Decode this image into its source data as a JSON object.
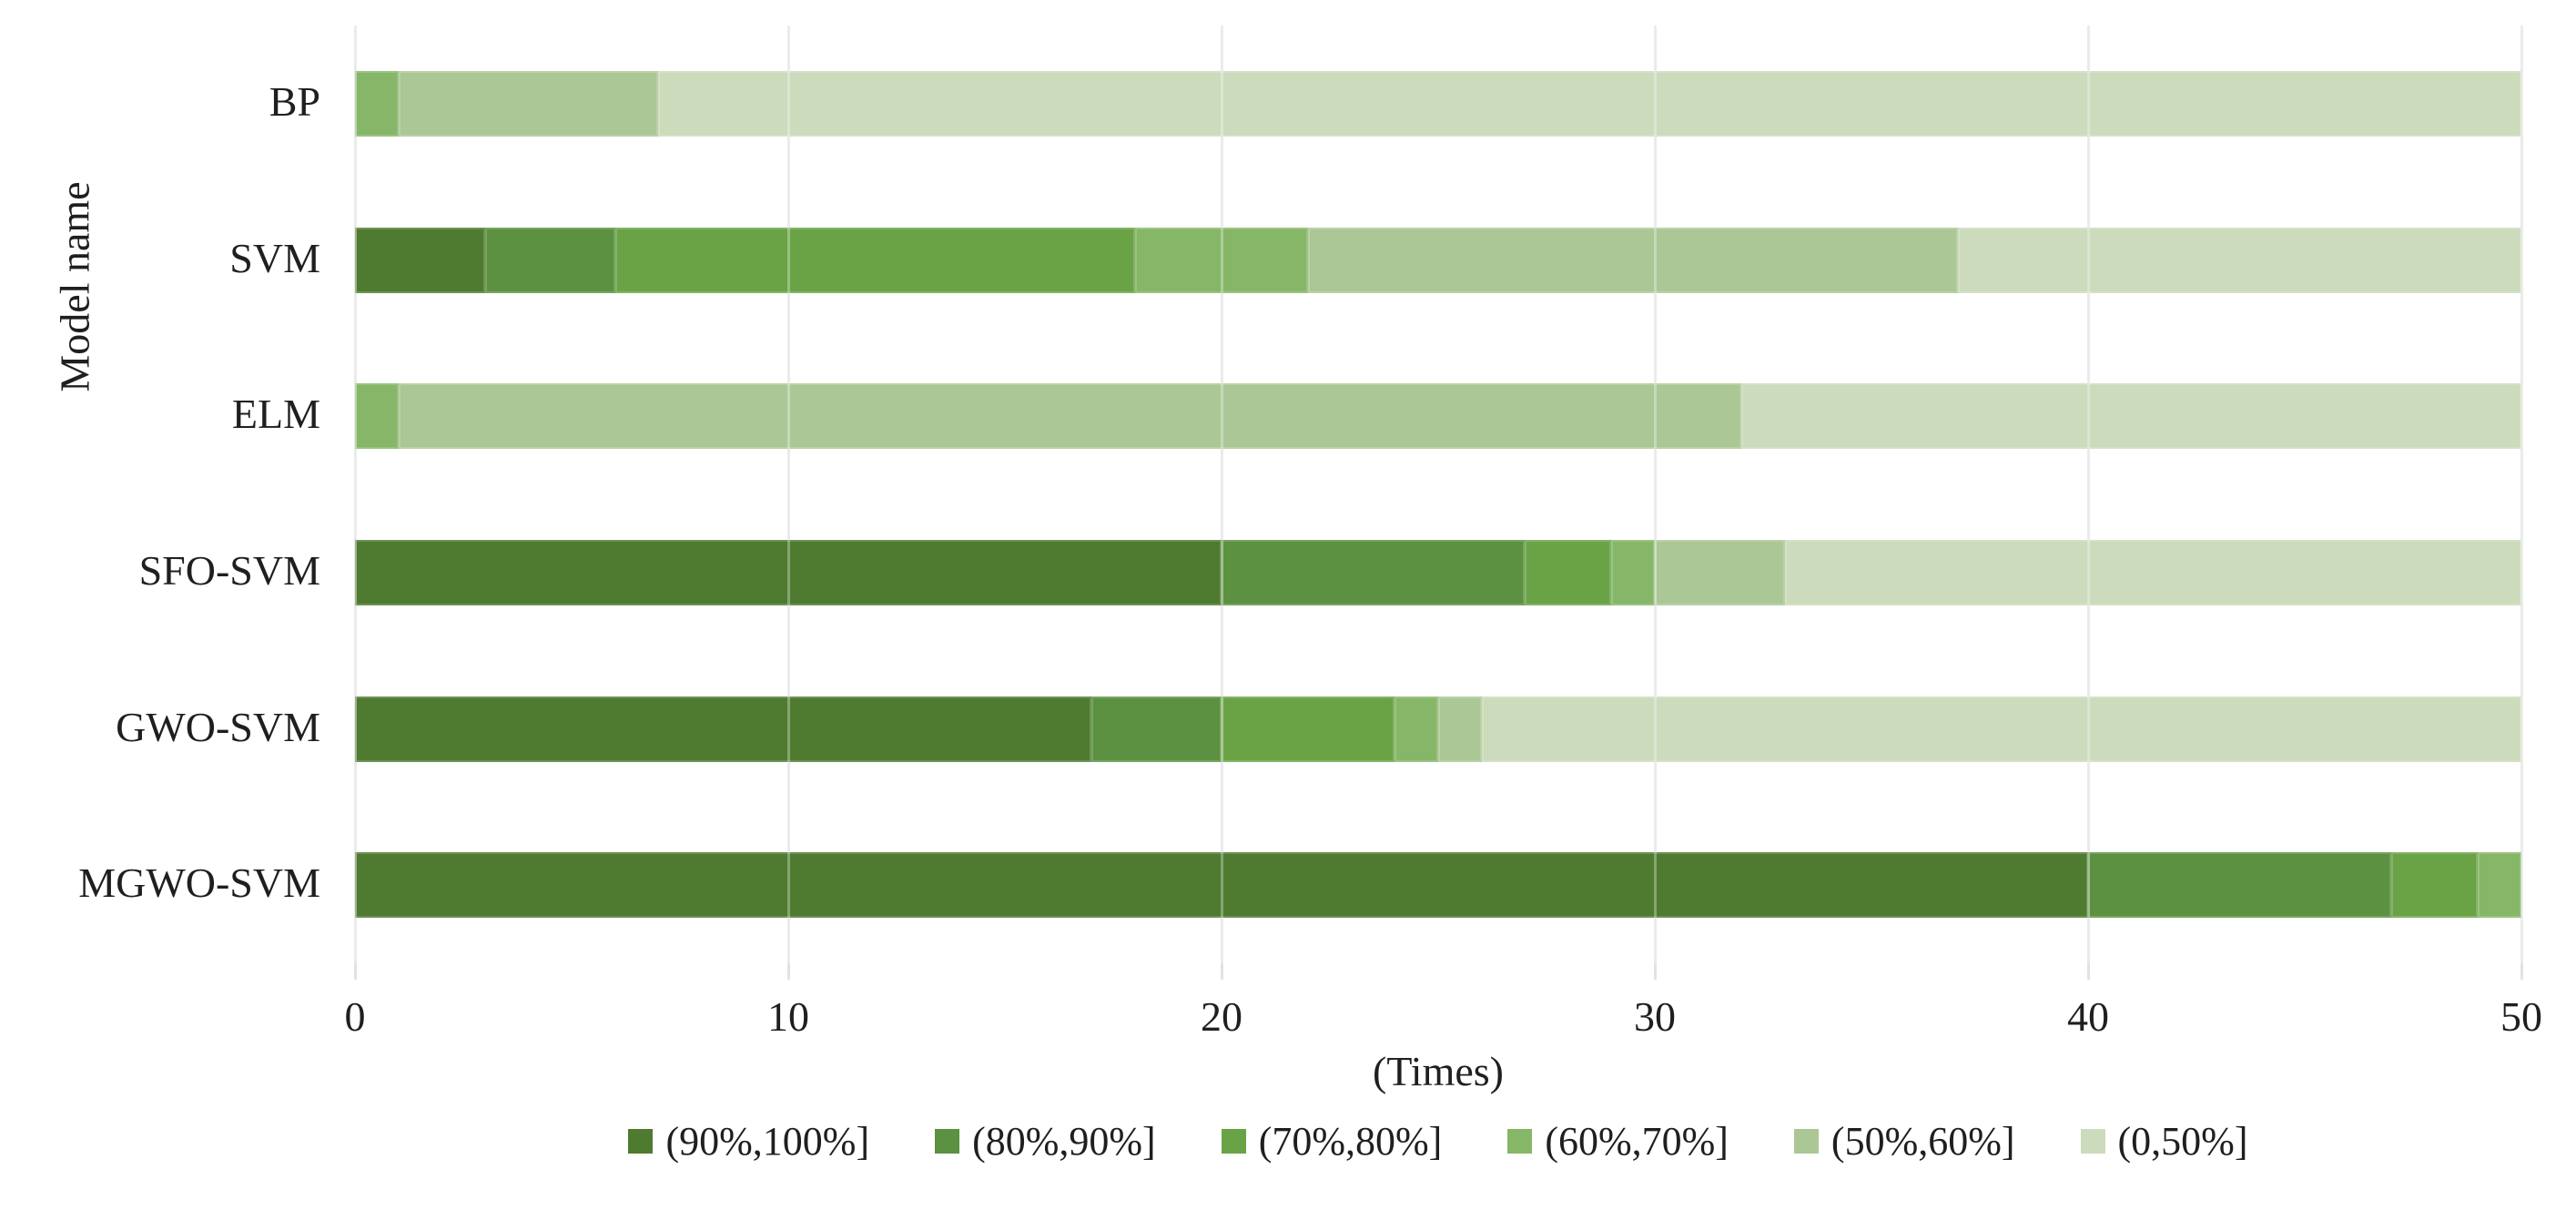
{
  "chart_data": {
    "type": "bar",
    "orientation": "horizontal",
    "stacked": true,
    "title": "",
    "xlabel": "(Times)",
    "ylabel": "Model name",
    "xlim": [
      0,
      50
    ],
    "xticks": [
      0,
      10,
      20,
      30,
      40,
      50
    ],
    "grid": true,
    "legend_position": "bottom",
    "categories": [
      "BP",
      "SVM",
      "ELM",
      "SFO-SVM",
      "GWO-SVM",
      "MGWO-SVM"
    ],
    "series": [
      {
        "name": "(90%,100%]",
        "color": "#4f7b31",
        "values": [
          0,
          3,
          0,
          20,
          17,
          40
        ]
      },
      {
        "name": "(80%,90%]",
        "color": "#5b9140",
        "values": [
          0,
          3,
          0,
          7,
          3,
          7
        ]
      },
      {
        "name": "(70%,80%]",
        "color": "#6aa346",
        "values": [
          0,
          12,
          0,
          2,
          4,
          2
        ]
      },
      {
        "name": "(60%,70%]",
        "color": "#86b667",
        "values": [
          1,
          4,
          1,
          1,
          1,
          1
        ]
      },
      {
        "name": "(50%,60%]",
        "color": "#abc795",
        "values": [
          6,
          15,
          31,
          3,
          1,
          0
        ]
      },
      {
        "name": "(0,50%]",
        "color": "#ccdbbb",
        "values": [
          43,
          13,
          18,
          17,
          24,
          0
        ]
      }
    ]
  },
  "colors": {
    "gridline": "#e2e2e2",
    "text": "#1f1f1f",
    "background": "#ffffff"
  }
}
